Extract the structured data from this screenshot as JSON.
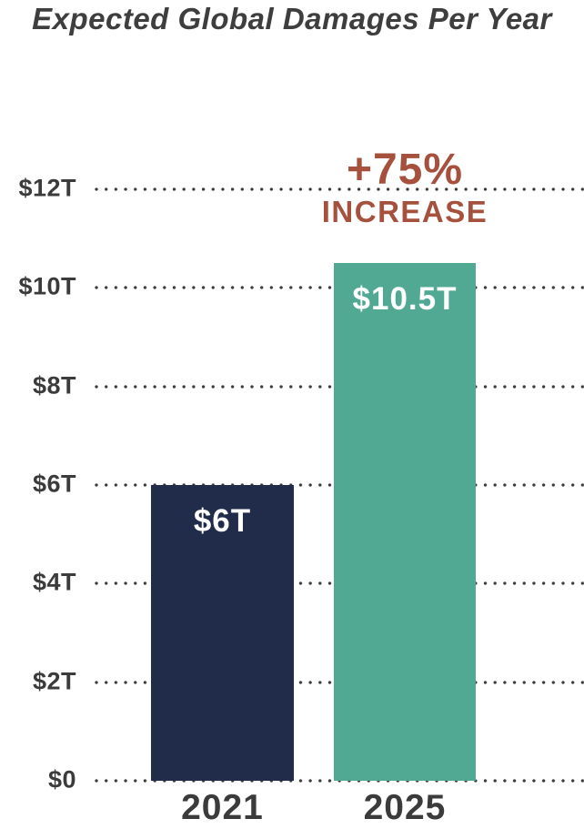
{
  "page": {
    "background": "#ffffff",
    "text_color": "#3b3b3b"
  },
  "chart_data": {
    "type": "bar",
    "title": "Expected Global Damages Per Year",
    "categories": [
      "2021",
      "2025"
    ],
    "values": [
      6,
      10.5
    ],
    "value_labels": [
      "$6T",
      "$10.5T"
    ],
    "bar_colors": [
      "#202c49",
      "#52a993"
    ],
    "ylim": [
      0,
      12
    ],
    "yticks": [
      {
        "value": 12,
        "label": "$12T"
      },
      {
        "value": 10,
        "label": "$10T"
      },
      {
        "value": 8,
        "label": "$8T"
      },
      {
        "value": 6,
        "label": "$6T"
      },
      {
        "value": 4,
        "label": "$4T"
      },
      {
        "value": 2,
        "label": "$2T"
      },
      {
        "value": 0,
        "label": "$0"
      }
    ],
    "xlabel": "",
    "ylabel": "",
    "grid": "horizontal-dotted",
    "grid_color": "#3b3b3b",
    "legend": false,
    "annotation": {
      "line1": "+75%",
      "line2": "INCREASE",
      "color": "#a5513d",
      "anchor": "above-2025-bar"
    }
  }
}
